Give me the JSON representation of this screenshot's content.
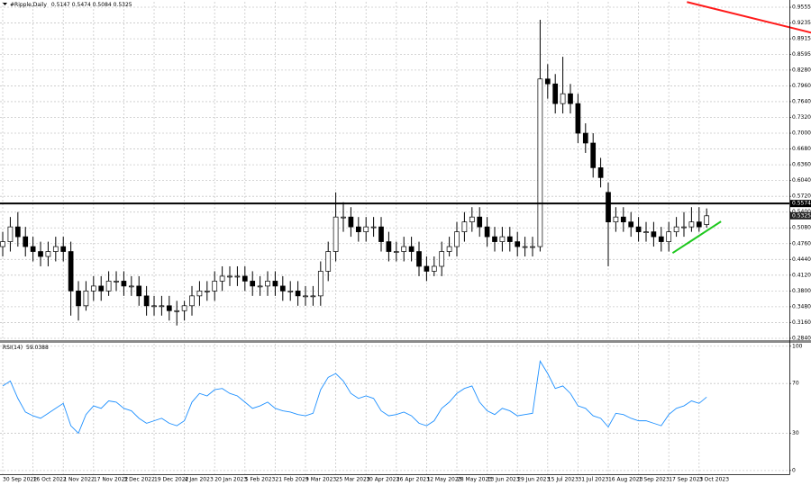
{
  "chart_data": [
    {
      "type": "candlestick",
      "title": "#Ripple,Daily",
      "categories": [
        "30 Sep 2022",
        null,
        null,
        null,
        "16 Oct 2022",
        null,
        null,
        null,
        "1 Nov 2022",
        null,
        null,
        null,
        "17 Nov 2022",
        null,
        null,
        null,
        "3 Dec 2022",
        null,
        null,
        null,
        "19 Dec 2022",
        null,
        null,
        null,
        "4 Jan 2023",
        null,
        null,
        null,
        "20 Jan 2023",
        null,
        null,
        null,
        "5 Feb 2023",
        null,
        null,
        null,
        "21 Feb 2023",
        null,
        null,
        null,
        "9 Mar 2023",
        null,
        null,
        null,
        "25 Mar 2023",
        null,
        null,
        null,
        "10 Apr 2023",
        null,
        null,
        null,
        "26 Apr 2023",
        null,
        null,
        null,
        "12 May 2023",
        null,
        null,
        null,
        "28 May 2023",
        null,
        null,
        null,
        "13 Jun 2023",
        null,
        null,
        null,
        "29 Jun 2023",
        null,
        null,
        null,
        "15 Jul 2023",
        null,
        null,
        null,
        "31 Jul 2023",
        null,
        null,
        null,
        "16 Aug 2023",
        null,
        null,
        null,
        "1 Sep 2023",
        null,
        null,
        null,
        "17 Sep 2023",
        null,
        null,
        null,
        "3 Oct 2023",
        null
      ],
      "open": [
        0.47,
        0.48,
        0.51,
        0.49,
        0.47,
        0.46,
        0.45,
        0.46,
        0.47,
        0.46,
        0.38,
        0.35,
        0.38,
        0.39,
        0.38,
        0.4,
        0.4,
        0.39,
        0.39,
        0.37,
        0.35,
        0.35,
        0.35,
        0.34,
        0.34,
        0.35,
        0.37,
        0.38,
        0.38,
        0.4,
        0.41,
        0.41,
        0.41,
        0.4,
        0.39,
        0.39,
        0.4,
        0.39,
        0.38,
        0.38,
        0.37,
        0.37,
        0.37,
        0.42,
        0.46,
        0.53,
        0.53,
        0.51,
        0.5,
        0.51,
        0.51,
        0.48,
        0.46,
        0.46,
        0.47,
        0.46,
        0.43,
        0.42,
        0.43,
        0.46,
        0.47,
        0.5,
        0.52,
        0.53,
        0.51,
        0.49,
        0.48,
        0.49,
        0.48,
        0.47,
        0.47,
        0.47,
        0.81,
        0.8,
        0.76,
        0.78,
        0.76,
        0.7,
        0.68,
        0.63,
        0.58,
        0.52,
        0.53,
        0.52,
        0.51,
        0.5,
        0.5,
        0.49,
        0.48,
        0.5,
        0.51,
        0.51,
        0.52,
        0.5147
      ],
      "high": [
        0.5,
        0.53,
        0.54,
        0.51,
        0.49,
        0.48,
        0.48,
        0.49,
        0.49,
        0.48,
        0.4,
        0.4,
        0.41,
        0.41,
        0.42,
        0.42,
        0.42,
        0.41,
        0.41,
        0.39,
        0.37,
        0.37,
        0.37,
        0.36,
        0.36,
        0.39,
        0.4,
        0.4,
        0.42,
        0.43,
        0.43,
        0.43,
        0.43,
        0.42,
        0.41,
        0.42,
        0.42,
        0.41,
        0.4,
        0.4,
        0.39,
        0.39,
        0.44,
        0.48,
        0.58,
        0.56,
        0.55,
        0.53,
        0.53,
        0.53,
        0.53,
        0.5,
        0.48,
        0.49,
        0.49,
        0.48,
        0.45,
        0.45,
        0.48,
        0.49,
        0.52,
        0.54,
        0.55,
        0.55,
        0.53,
        0.51,
        0.51,
        0.51,
        0.5,
        0.49,
        0.49,
        0.93,
        0.84,
        0.82,
        0.855,
        0.8,
        0.78,
        0.72,
        0.7,
        0.65,
        0.6,
        0.55,
        0.55,
        0.54,
        0.53,
        0.52,
        0.52,
        0.51,
        0.52,
        0.53,
        0.54,
        0.55,
        0.55,
        0.5474
      ],
      "low": [
        0.45,
        0.46,
        0.47,
        0.45,
        0.44,
        0.43,
        0.43,
        0.44,
        0.44,
        0.33,
        0.32,
        0.34,
        0.36,
        0.36,
        0.37,
        0.38,
        0.37,
        0.37,
        0.35,
        0.33,
        0.33,
        0.33,
        0.32,
        0.31,
        0.32,
        0.33,
        0.35,
        0.36,
        0.36,
        0.38,
        0.39,
        0.39,
        0.38,
        0.37,
        0.37,
        0.37,
        0.37,
        0.36,
        0.36,
        0.35,
        0.35,
        0.35,
        0.35,
        0.4,
        0.44,
        0.5,
        0.49,
        0.48,
        0.48,
        0.49,
        0.46,
        0.44,
        0.44,
        0.44,
        0.44,
        0.41,
        0.4,
        0.41,
        0.41,
        0.45,
        0.45,
        0.48,
        0.5,
        0.49,
        0.47,
        0.46,
        0.46,
        0.46,
        0.45,
        0.45,
        0.45,
        0.46,
        0.77,
        0.74,
        0.74,
        0.74,
        0.68,
        0.66,
        0.61,
        0.59,
        0.43,
        0.5,
        0.5,
        0.49,
        0.48,
        0.48,
        0.47,
        0.46,
        0.46,
        0.49,
        0.49,
        0.5,
        0.5,
        0.5084
      ],
      "close": [
        0.48,
        0.51,
        0.49,
        0.47,
        0.46,
        0.45,
        0.46,
        0.47,
        0.46,
        0.38,
        0.35,
        0.38,
        0.39,
        0.38,
        0.4,
        0.4,
        0.39,
        0.39,
        0.37,
        0.35,
        0.35,
        0.35,
        0.34,
        0.34,
        0.35,
        0.37,
        0.38,
        0.38,
        0.4,
        0.41,
        0.41,
        0.41,
        0.4,
        0.39,
        0.39,
        0.4,
        0.39,
        0.38,
        0.38,
        0.37,
        0.37,
        0.37,
        0.42,
        0.46,
        0.53,
        0.53,
        0.51,
        0.5,
        0.51,
        0.51,
        0.48,
        0.46,
        0.46,
        0.47,
        0.46,
        0.43,
        0.42,
        0.43,
        0.46,
        0.47,
        0.5,
        0.52,
        0.53,
        0.51,
        0.49,
        0.48,
        0.49,
        0.48,
        0.47,
        0.47,
        0.47,
        0.81,
        0.8,
        0.76,
        0.78,
        0.76,
        0.7,
        0.68,
        0.63,
        0.61,
        0.52,
        0.53,
        0.52,
        0.51,
        0.5,
        0.5,
        0.49,
        0.48,
        0.5,
        0.51,
        0.51,
        0.52,
        0.51,
        0.5325
      ],
      "xlim": [
        -0.36,
        103.93
      ],
      "ylim": [
        0.2803,
        0.9665
      ],
      "yticks": [
        0.9555,
        0.9235,
        0.8915,
        0.8595,
        {
          "value": 0.828,
          "label": "0.8280"
        },
        {
          "value": 0.796,
          "label": "0.7960"
        },
        {
          "value": 0.764,
          "label": "0.7640"
        },
        {
          "value": 0.732,
          "label": "0.7320"
        },
        {
          "value": 0.7,
          "label": "0.7000"
        },
        {
          "value": 0.668,
          "label": "0.6680"
        },
        {
          "value": 0.636,
          "label": "0.6360"
        },
        {
          "value": 0.604,
          "label": "0.6040"
        },
        {
          "value": 0.572,
          "label": "0.5720"
        },
        {
          "value": 0.54,
          "label": "0.5400"
        },
        {
          "value": 0.508,
          "label": "0.5080"
        },
        {
          "value": 0.476,
          "label": "0.4760"
        },
        {
          "value": 0.444,
          "label": "0.4440"
        },
        {
          "value": 0.412,
          "label": "0.4120"
        },
        {
          "value": 0.38,
          "label": "0.3800"
        },
        {
          "value": 0.348,
          "label": "0.3480"
        },
        {
          "value": 0.316,
          "label": "0.3160"
        },
        {
          "value": 0.284,
          "label": "0.2840"
        }
      ],
      "hline": 0.5574,
      "trendlines": [
        {
          "color": "#1ec81e",
          "x": [
            88.5,
            94.9
          ],
          "values": [
            0.457,
            0.521
          ]
        },
        {
          "color": "#ff1a1a",
          "x": [
            90.4,
            106.8
          ],
          "values": [
            0.966,
            0.904
          ]
        }
      ],
      "grid": true
    },
    {
      "type": "line",
      "title": "RSI(14)",
      "color": "#1e90ff",
      "values": [
        68,
        72,
        58,
        47,
        44,
        42,
        46,
        50,
        54,
        36,
        30,
        45,
        52,
        50,
        56,
        55,
        50,
        48,
        42,
        38,
        40,
        42,
        38,
        36,
        40,
        55,
        62,
        60,
        65,
        66,
        62,
        60,
        55,
        50,
        52,
        55,
        50,
        48,
        47,
        45,
        44,
        46,
        65,
        75,
        78,
        72,
        62,
        58,
        60,
        58,
        48,
        44,
        45,
        47,
        44,
        38,
        36,
        40,
        50,
        55,
        62,
        66,
        68,
        55,
        48,
        45,
        50,
        48,
        44,
        45,
        46,
        88,
        78,
        66,
        68,
        62,
        52,
        50,
        44,
        42,
        35,
        46,
        45,
        42,
        40,
        40,
        38,
        36,
        45,
        50,
        52,
        56,
        54,
        59.0388
      ],
      "ylim": [
        -3,
        102
      ],
      "yticks": [
        100,
        70,
        30,
        0
      ],
      "grid": true
    }
  ]
}
